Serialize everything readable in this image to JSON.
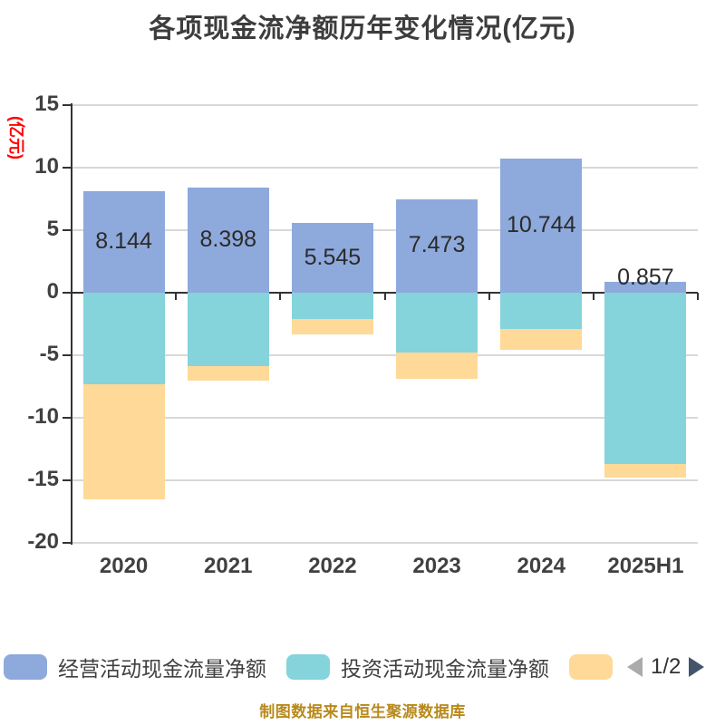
{
  "title": "各项现金流净额历年变化情况(亿元)",
  "y_axis_unit": "(亿元)",
  "footer_note": "制图数据来自恒生聚源数据库",
  "legend": {
    "items": [
      {
        "key": "operating",
        "label": "经营活动现金流量净额",
        "color": "#8EA9DC"
      },
      {
        "key": "investing",
        "label": "投资活动现金流量净额",
        "color": "#85D3DB"
      },
      {
        "key": "series3",
        "label": "",
        "color": "#FFD997"
      }
    ],
    "pagination": {
      "current": "1/2",
      "prev_icon_color": "#ABABAB",
      "next_icon_color": "#44546A"
    }
  },
  "colors": {
    "title": "#3D3D3D",
    "axis_text": "#404040",
    "grid_line": "#D8D8D8",
    "axis_line": "#333333",
    "value_label": "#2B2B2B",
    "unit_label": "#FE0404",
    "footer": "#B8891B"
  },
  "chart_data": {
    "type": "bar",
    "stacked": true,
    "grid": true,
    "legend_position": "bottom",
    "categories": [
      "2020",
      "2021",
      "2022",
      "2023",
      "2024",
      "2025H1"
    ],
    "series": [
      {
        "key": "operating",
        "name": "经营活动现金流量净额",
        "color": "#8EA9DC",
        "values": [
          8.144,
          8.398,
          5.545,
          7.473,
          10.744,
          0.857
        ],
        "data_labels": true
      },
      {
        "key": "investing",
        "name": "投资活动现金流量净额",
        "color": "#85D3DB",
        "values": [
          -7.3,
          -5.9,
          -2.1,
          -4.8,
          -2.9,
          -13.7
        ],
        "data_labels": false,
        "values_estimated": true
      },
      {
        "key": "series3",
        "name": "",
        "color": "#FFD997",
        "values": [
          -9.2,
          -1.1,
          -1.2,
          -2.1,
          -1.7,
          -1.1
        ],
        "data_labels": false,
        "values_estimated": true
      }
    ],
    "ylim": [
      -20,
      15
    ],
    "y_ticks": [
      15,
      10,
      5,
      0,
      -5,
      -10,
      -15,
      -20
    ]
  }
}
